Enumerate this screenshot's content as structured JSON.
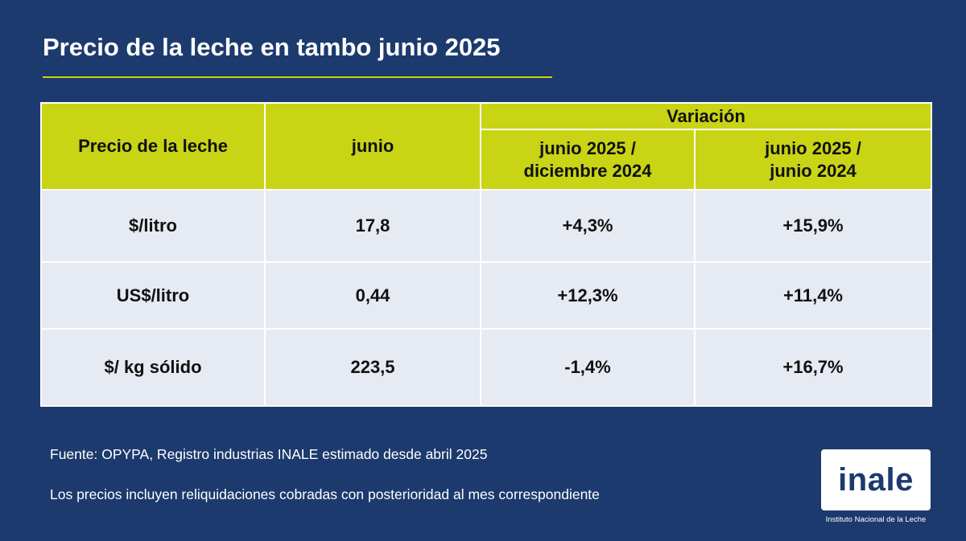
{
  "title": "Precio de la leche en tambo junio 2025",
  "table": {
    "col_concept": "Precio de la leche",
    "col_month": "junio",
    "col_variation": "Variación",
    "sub_col_1": [
      "junio 2025 /",
      "diciembre 2024"
    ],
    "sub_col_2": [
      "junio 2025 /",
      "junio 2024"
    ],
    "rows": [
      {
        "concept": "$/litro",
        "value": "17,8",
        "var_dec": "+4,3%",
        "var_jun": "+15,9%"
      },
      {
        "concept": "US$/litro",
        "value": "0,44",
        "var_dec": "+12,3%",
        "var_jun": "+11,4%"
      },
      {
        "concept": "$/ kg sólido",
        "value": "223,5",
        "var_dec": "-1,4%",
        "var_jun": "+16,7%"
      }
    ]
  },
  "footnotes": {
    "source": "Fuente: OPYPA, Registro industrias INALE estimado desde abril 2025",
    "note": "Los precios incluyen reliquidaciones cobradas con posterioridad al mes correspondiente"
  },
  "logo": {
    "text": "inale",
    "caption": "Instituto Nacional de la Leche"
  },
  "colors": {
    "background": "#1c3a6e",
    "accent": "#c8d414",
    "table_body": "#e6eaf3"
  }
}
